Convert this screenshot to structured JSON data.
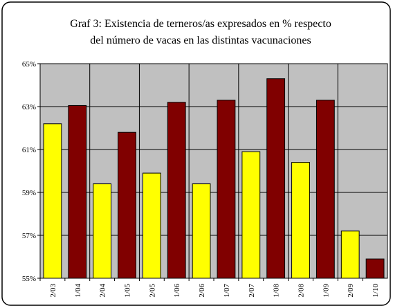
{
  "chart_data": {
    "type": "bar",
    "title": [
      "Graf 3: Existencia de terneros/as expresados en % respecto",
      "del número de vacas en las distintas vacunaciones"
    ],
    "categories": [
      "2/03",
      "1/04",
      "2/04",
      "1/05",
      "2/05",
      "1/06",
      "2/06",
      "1/07",
      "2/07",
      "1/08",
      "2/08",
      "1/09",
      "2/09",
      "1/10"
    ],
    "values": [
      62.2,
      63.05,
      59.4,
      61.8,
      59.9,
      63.2,
      59.4,
      63.3,
      60.9,
      64.3,
      60.4,
      63.3,
      57.2,
      55.9
    ],
    "colors": [
      "#ffff00",
      "#800000",
      "#ffff00",
      "#800000",
      "#ffff00",
      "#800000",
      "#ffff00",
      "#800000",
      "#ffff00",
      "#800000",
      "#ffff00",
      "#800000",
      "#ffff00",
      "#800000"
    ],
    "ylim": [
      55,
      65
    ],
    "yticks": [
      {
        "value": 55,
        "label": "55%"
      },
      {
        "value": 57,
        "label": "57%"
      },
      {
        "value": 59,
        "label": "59%"
      },
      {
        "value": 61,
        "label": "61%"
      },
      {
        "value": 63,
        "label": "63%"
      },
      {
        "value": 65,
        "label": "65%"
      }
    ],
    "grid": true
  }
}
